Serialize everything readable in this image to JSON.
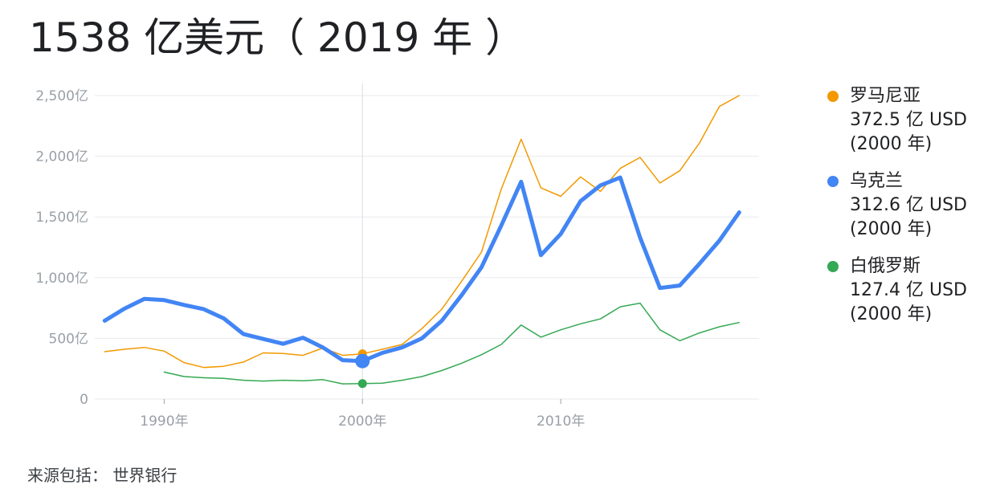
{
  "title": "1538 亿美元（ 2019 年 ）",
  "source": "来源包括： 世界银行",
  "chart_data": {
    "type": "line",
    "ylim": [
      0,
      2500
    ],
    "xlim": [
      1986.5,
      2020
    ],
    "yticks": [
      0,
      500,
      1000,
      1500,
      2000,
      2500
    ],
    "ytick_labels": [
      "0",
      "500亿",
      "1,000亿",
      "1,500亿",
      "2,000亿",
      "2,500亿"
    ],
    "xticks": [
      1990,
      2000,
      2010
    ],
    "xtick_labels": [
      "1990年",
      "2000年",
      "2010年"
    ],
    "highlight_year": 2000,
    "grid": true,
    "legend_position": "right",
    "x": [
      1987,
      1988,
      1989,
      1990,
      1991,
      1992,
      1993,
      1994,
      1995,
      1996,
      1997,
      1998,
      1999,
      2000,
      2001,
      2002,
      2003,
      2004,
      2005,
      2006,
      2007,
      2008,
      2009,
      2010,
      2011,
      2012,
      2013,
      2014,
      2015,
      2016,
      2017,
      2018,
      2019
    ],
    "series": [
      {
        "name": "罗马尼亚",
        "color": "#f29900",
        "width": 1.5,
        "values": [
          390,
          410,
          425,
          395,
          300,
          260,
          270,
          305,
          380,
          375,
          360,
          420,
          360,
          372.5,
          410,
          450,
          580,
          740,
          970,
          1210,
          1730,
          2140,
          1740,
          1670,
          1830,
          1710,
          1900,
          1990,
          1780,
          1880,
          2110,
          2410,
          2500
        ]
      },
      {
        "name": "乌克兰",
        "color": "#4285f4",
        "width": 5,
        "values": [
          645,
          745,
          825,
          815,
          775,
          740,
          665,
          535,
          495,
          455,
          505,
          425,
          320,
          312.6,
          380,
          425,
          500,
          645,
          855,
          1085,
          1430,
          1790,
          1185,
          1360,
          1630,
          1760,
          1825,
          1330,
          915,
          935,
          1115,
          1305,
          1538
        ]
      },
      {
        "name": "白俄罗斯",
        "color": "#34a853",
        "width": 1.5,
        "values": [
          null,
          null,
          null,
          222,
          185,
          175,
          170,
          155,
          148,
          155,
          150,
          160,
          125,
          127.4,
          130,
          155,
          185,
          235,
          295,
          365,
          450,
          610,
          510,
          570,
          620,
          660,
          760,
          790,
          570,
          480,
          545,
          595,
          630
        ]
      }
    ],
    "legend": [
      {
        "name": "罗马尼亚",
        "value": "372.5 亿 USD",
        "year": "(2000 年)",
        "color": "#f29900"
      },
      {
        "name": "乌克兰",
        "value": "312.6 亿 USD",
        "year": "(2000 年)",
        "color": "#4285f4"
      },
      {
        "name": "白俄罗斯",
        "value": "127.4 亿 USD",
        "year": "(2000 年)",
        "color": "#34a853"
      }
    ]
  }
}
